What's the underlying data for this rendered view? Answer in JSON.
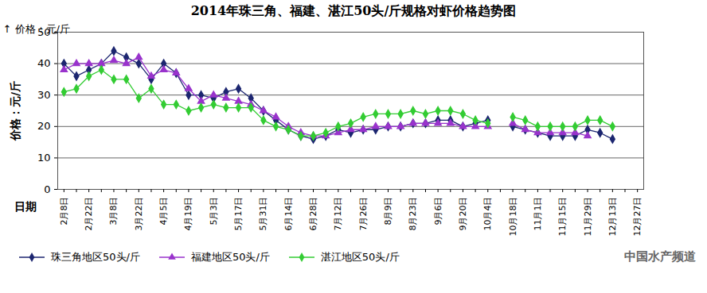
{
  "chart_data": {
    "type": "line",
    "title": "2014年珠三角、福建、湛江50头/斤规格对虾价格趋势图",
    "x_label": "日期",
    "y_label": "价格：元/斤",
    "annotations": [
      "中国水产频道"
    ],
    "categories": [
      "2月8日",
      null,
      "2月22日",
      null,
      "3月8日",
      null,
      "3月22日",
      null,
      "4月5日",
      null,
      "4月19日",
      null,
      "5月3日",
      null,
      "5月17日",
      null,
      "5月31日",
      null,
      "6月14日",
      null,
      "6月28日",
      null,
      "7月12日",
      null,
      "7月26日",
      null,
      "8月9日",
      null,
      "8月23日",
      null,
      "9月6日",
      null,
      "9月20日",
      null,
      "10月4日",
      null,
      "10月18日",
      null,
      "11月1日",
      null,
      "11月15日",
      null,
      "11月29日",
      null,
      "12月13日",
      null,
      "12月27日"
    ],
    "series": [
      {
        "name": "珠三角地区50头/斤",
        "color": "#1c2670",
        "marker": "diamond",
        "values": [
          40,
          36,
          38,
          40,
          44,
          42,
          40,
          35,
          40,
          37,
          30,
          30,
          29,
          31,
          32,
          29,
          25,
          22,
          19,
          17,
          16,
          17,
          19,
          18,
          19,
          19,
          20,
          20,
          21,
          21,
          22,
          22,
          20,
          21,
          22,
          null,
          20,
          19,
          18,
          17,
          17,
          17,
          19,
          18,
          16,
          null,
          null
        ]
      },
      {
        "name": "福建地区50头/斤",
        "color": "#9933cc",
        "marker": "triangle",
        "values": [
          38,
          40,
          40,
          40,
          41,
          40,
          42,
          36,
          38,
          37,
          32,
          28,
          30,
          29,
          28,
          27,
          25,
          23,
          20,
          18,
          17,
          17,
          18,
          19,
          19,
          20,
          20,
          20,
          21,
          21,
          21,
          21,
          20,
          20,
          20,
          null,
          21,
          19,
          18,
          18,
          18,
          18,
          17,
          null,
          null,
          null,
          null
        ]
      },
      {
        "name": "湛江地区50头/斤",
        "color": "#33cc33",
        "marker": "diamond",
        "values": [
          31,
          32,
          36,
          38,
          35,
          35,
          29,
          32,
          27,
          27,
          25,
          26,
          27,
          26,
          26,
          26,
          22,
          20,
          19,
          17,
          17,
          18,
          20,
          21,
          23,
          24,
          24,
          24,
          25,
          24,
          25,
          25,
          24,
          22,
          21,
          null,
          23,
          22,
          20,
          20,
          20,
          20,
          22,
          22,
          20,
          null,
          null
        ]
      }
    ],
    "ylim": [
      0,
      50
    ],
    "yticks": [
      0,
      10,
      20,
      30,
      40,
      50
    ],
    "grid": true,
    "legend": "bottom"
  }
}
